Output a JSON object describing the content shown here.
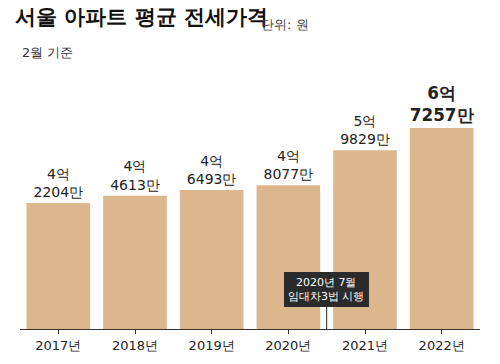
{
  "chart_data": {
    "type": "bar",
    "title": "서울 아파트 평균 전세가격",
    "unit_label": "단위: 원",
    "subtitle": "2월 기준",
    "categories": [
      "2017년",
      "2018년",
      "2019년",
      "2020년",
      "2021년",
      "2022년"
    ],
    "values": [
      422040000,
      446130000,
      464930000,
      480770000,
      598290000,
      672570000
    ],
    "value_labels": [
      "4억 2204만",
      "4억 4613만",
      "4억 6493만",
      "4억 8077만",
      "5억 9829만",
      "6억 7257만"
    ],
    "color": "#dcb68c",
    "ylim": [
      0,
      850000000
    ],
    "yticks": [],
    "grid": false,
    "data_labels": true,
    "tick_labels": "x",
    "annotations": [
      {
        "text": "2020년 7월\n임대차3법 시행"
      }
    ]
  }
}
